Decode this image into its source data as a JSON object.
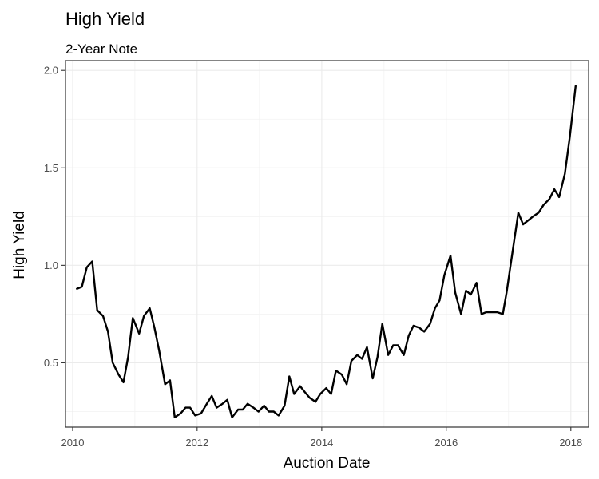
{
  "chart_data": {
    "type": "line",
    "title": "High Yield",
    "subtitle": "2-Year Note",
    "xlabel": "Auction Date",
    "ylabel": "High Yield",
    "xlim": [
      "2009-11-20",
      "2018-04-15"
    ],
    "ylim": [
      0.17,
      2.05
    ],
    "x_ticks": [
      "2010",
      "2012",
      "2014",
      "2016",
      "2018"
    ],
    "y_ticks": [
      "0.5",
      "1.0",
      "1.5",
      "2.0"
    ],
    "grid": true,
    "line_color": "#000000",
    "series": [
      {
        "points": [
          [
            "2010-01-26",
            0.88
          ],
          [
            "2010-02-24",
            0.89
          ],
          [
            "2010-03-25",
            0.99
          ],
          [
            "2010-04-26",
            1.02
          ],
          [
            "2010-05-25",
            0.77
          ],
          [
            "2010-06-28",
            0.74
          ],
          [
            "2010-07-27",
            0.66
          ],
          [
            "2010-08-24",
            0.5
          ],
          [
            "2010-09-27",
            0.44
          ],
          [
            "2010-10-26",
            0.4
          ],
          [
            "2010-11-22",
            0.53
          ],
          [
            "2010-12-20",
            0.73
          ],
          [
            "2011-01-26",
            0.65
          ],
          [
            "2011-02-23",
            0.74
          ],
          [
            "2011-03-29",
            0.78
          ],
          [
            "2011-04-26",
            0.68
          ],
          [
            "2011-05-24",
            0.56
          ],
          [
            "2011-06-27",
            0.39
          ],
          [
            "2011-07-26",
            0.41
          ],
          [
            "2011-08-23",
            0.22
          ],
          [
            "2011-09-26",
            0.24
          ],
          [
            "2011-10-25",
            0.27
          ],
          [
            "2011-11-21",
            0.27
          ],
          [
            "2011-12-20",
            0.23
          ],
          [
            "2012-01-24",
            0.24
          ],
          [
            "2012-02-27",
            0.29
          ],
          [
            "2012-03-27",
            0.33
          ],
          [
            "2012-04-24",
            0.27
          ],
          [
            "2012-05-29",
            0.29
          ],
          [
            "2012-06-26",
            0.31
          ],
          [
            "2012-07-24",
            0.22
          ],
          [
            "2012-08-28",
            0.26
          ],
          [
            "2012-09-25",
            0.26
          ],
          [
            "2012-10-23",
            0.29
          ],
          [
            "2012-11-26",
            0.27
          ],
          [
            "2012-12-26",
            0.25
          ],
          [
            "2013-01-28",
            0.28
          ],
          [
            "2013-02-25",
            0.25
          ],
          [
            "2013-03-25",
            0.25
          ],
          [
            "2013-04-23",
            0.23
          ],
          [
            "2013-05-28",
            0.28
          ],
          [
            "2013-06-25",
            0.43
          ],
          [
            "2013-07-23",
            0.34
          ],
          [
            "2013-08-27",
            0.38
          ],
          [
            "2013-09-24",
            0.35
          ],
          [
            "2013-10-23",
            0.32
          ],
          [
            "2013-11-25",
            0.3
          ],
          [
            "2013-12-23",
            0.34
          ],
          [
            "2014-01-27",
            0.37
          ],
          [
            "2014-02-25",
            0.34
          ],
          [
            "2014-03-25",
            0.46
          ],
          [
            "2014-04-28",
            0.44
          ],
          [
            "2014-05-27",
            0.39
          ],
          [
            "2014-06-24",
            0.51
          ],
          [
            "2014-07-28",
            0.54
          ],
          [
            "2014-08-25",
            0.52
          ],
          [
            "2014-09-23",
            0.58
          ],
          [
            "2014-10-27",
            0.42
          ],
          [
            "2014-11-24",
            0.53
          ],
          [
            "2014-12-22",
            0.7
          ],
          [
            "2015-01-26",
            0.54
          ],
          [
            "2015-02-24",
            0.59
          ],
          [
            "2015-03-24",
            0.59
          ],
          [
            "2015-04-27",
            0.54
          ],
          [
            "2015-05-26",
            0.64
          ],
          [
            "2015-06-23",
            0.69
          ],
          [
            "2015-07-27",
            0.68
          ],
          [
            "2015-08-25",
            0.66
          ],
          [
            "2015-09-28",
            0.7
          ],
          [
            "2015-10-27",
            0.78
          ],
          [
            "2015-11-23",
            0.82
          ],
          [
            "2015-12-21",
            0.95
          ],
          [
            "2016-01-26",
            1.05
          ],
          [
            "2016-02-23",
            0.86
          ],
          [
            "2016-03-28",
            0.75
          ],
          [
            "2016-04-26",
            0.87
          ],
          [
            "2016-05-24",
            0.85
          ],
          [
            "2016-06-27",
            0.91
          ],
          [
            "2016-07-26",
            0.75
          ],
          [
            "2016-08-23",
            0.76
          ],
          [
            "2016-09-26",
            0.76
          ],
          [
            "2016-10-25",
            0.76
          ],
          [
            "2016-11-28",
            0.75
          ],
          [
            "2016-12-20",
            0.86
          ],
          [
            "2017-01-24",
            1.07
          ],
          [
            "2017-02-27",
            1.27
          ],
          [
            "2017-03-27",
            1.21
          ],
          [
            "2017-04-25",
            1.23
          ],
          [
            "2017-05-23",
            1.25
          ],
          [
            "2017-06-26",
            1.27
          ],
          [
            "2017-07-25",
            1.31
          ],
          [
            "2017-08-28",
            1.34
          ],
          [
            "2017-09-26",
            1.39
          ],
          [
            "2017-10-24",
            1.35
          ],
          [
            "2017-11-27",
            1.47
          ],
          [
            "2017-12-26",
            1.66
          ],
          [
            "2018-01-29",
            1.92
          ]
        ]
      }
    ]
  }
}
